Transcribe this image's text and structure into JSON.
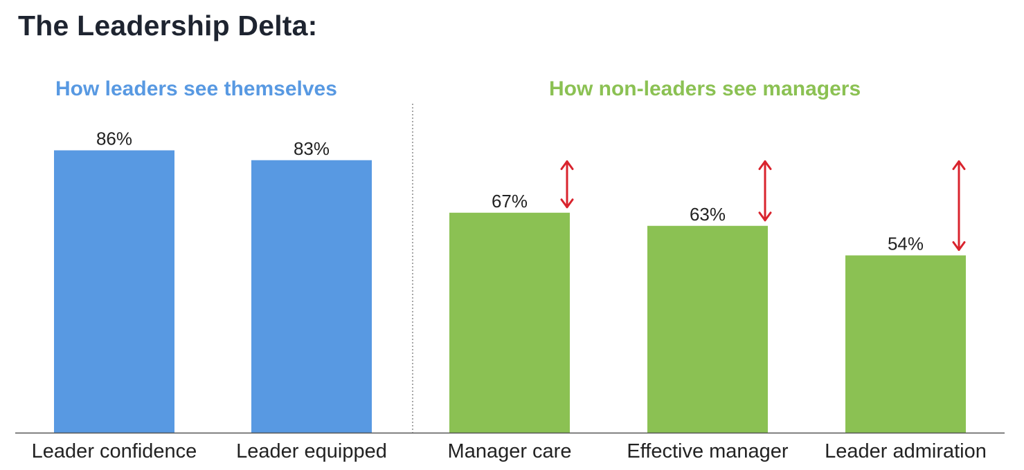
{
  "title": "The Leadership Delta:",
  "colors": {
    "leaders": "#5899e2",
    "non_leaders": "#8bc153",
    "gap_arrow": "#d9232d",
    "axis": "#555555",
    "divider": "#888888"
  },
  "chart_data": {
    "type": "bar",
    "title": "The Leadership Delta:",
    "value_format": "percent",
    "ylim": [
      0,
      100
    ],
    "grid": false,
    "groups": [
      {
        "name": "How leaders see themselves",
        "color": "#5899e2",
        "categories": [
          "Leader confidence",
          "Leader equipped"
        ],
        "values": [
          86,
          83
        ]
      },
      {
        "name": "How non-leaders see managers",
        "color": "#8bc153",
        "categories": [
          "Manager care",
          "Effective manager",
          "Leader admiration"
        ],
        "values": [
          67,
          63,
          54
        ]
      }
    ],
    "categories": [
      "Leader confidence",
      "Leader equipped",
      "Manager care",
      "Effective manager",
      "Leader admiration"
    ],
    "values": [
      86,
      83,
      67,
      63,
      54
    ],
    "value_labels": [
      "86%",
      "83%",
      "67%",
      "63%",
      "54%"
    ],
    "annotations": [
      {
        "type": "gap-arrow",
        "category": "Manager care",
        "from": 67,
        "to": 86
      },
      {
        "type": "gap-arrow",
        "category": "Effective manager",
        "from": 63,
        "to": 86
      },
      {
        "type": "gap-arrow",
        "category": "Leader admiration",
        "from": 54,
        "to": 86
      }
    ]
  }
}
